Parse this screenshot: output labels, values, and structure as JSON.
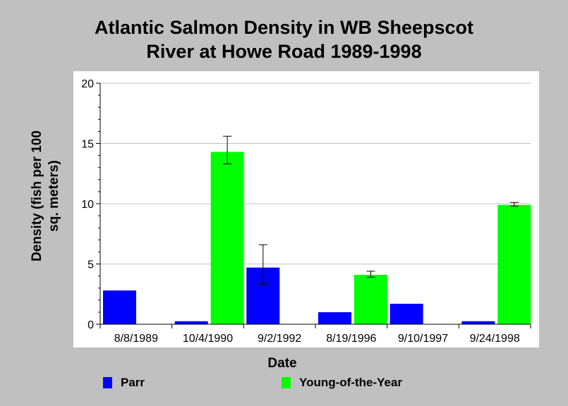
{
  "chart_data": {
    "type": "bar",
    "title_lines": [
      "Atlantic Salmon Density in WB Sheepscot",
      "River at Howe Road 1989-1998"
    ],
    "xlabel": "Date",
    "ylabel_lines": [
      "Density (fish per 100",
      "sq. meters)"
    ],
    "ylim": [
      0,
      20
    ],
    "yticks": [
      0,
      5,
      10,
      15,
      20
    ],
    "grid": true,
    "legend_position": "bottom",
    "categories": [
      "8/8/1989",
      "10/4/1990",
      "9/2/1992",
      "8/19/1996",
      "9/10/1997",
      "9/24/1998"
    ],
    "series": [
      {
        "name": "Parr",
        "color": "#0000ff",
        "values": [
          2.8,
          0.25,
          4.7,
          1.0,
          1.7,
          0.25
        ],
        "error": [
          null,
          null,
          [
            3.3,
            6.6
          ],
          null,
          null,
          null
        ]
      },
      {
        "name": "Young-of-the-Year",
        "color": "#00ff00",
        "values": [
          0,
          14.3,
          0,
          4.1,
          0,
          9.9
        ],
        "error": [
          null,
          [
            13.3,
            15.6
          ],
          null,
          [
            3.9,
            4.4
          ],
          null,
          [
            9.8,
            10.1
          ]
        ]
      }
    ]
  }
}
